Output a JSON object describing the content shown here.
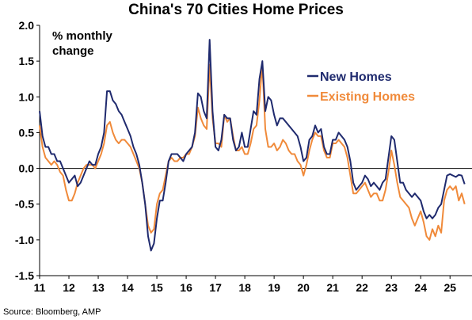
{
  "chart_data": {
    "type": "line",
    "title": "China's 70 Cities Home Prices",
    "unit_label": "% monthly\nchange",
    "source": "Source: Bloomberg, AMP",
    "x_tick_labels": [
      "11",
      "12",
      "13",
      "14",
      "15",
      "16",
      "17",
      "18",
      "19",
      "20",
      "21",
      "22",
      "23",
      "24",
      "25"
    ],
    "x_tick_years": [
      2011,
      2012,
      2013,
      2014,
      2015,
      2016,
      2017,
      2018,
      2019,
      2020,
      2021,
      2022,
      2023,
      2024,
      2025
    ],
    "xlim": [
      2011.0,
      2025.75
    ],
    "ylim": [
      -1.5,
      2.0
    ],
    "y_ticks": [
      -1.5,
      -1.0,
      -0.5,
      0.0,
      0.5,
      1.0,
      1.5,
      2.0
    ],
    "y_tick_labels": [
      "-1.5",
      "-1.0",
      "-0.5",
      "0.0",
      "0.5",
      "1.0",
      "1.5",
      "2.0"
    ],
    "grid": false,
    "legend_position": "upper-right",
    "series": [
      {
        "name": "New Homes",
        "color": "#1f2a6e",
        "points": [
          [
            2011.0,
            0.8
          ],
          [
            2011.1,
            0.45
          ],
          [
            2011.2,
            0.3
          ],
          [
            2011.3,
            0.3
          ],
          [
            2011.4,
            0.2
          ],
          [
            2011.5,
            0.2
          ],
          [
            2011.6,
            0.1
          ],
          [
            2011.7,
            0.1
          ],
          [
            2011.8,
            0.0
          ],
          [
            2011.9,
            -0.1
          ],
          [
            2012.0,
            -0.2
          ],
          [
            2012.1,
            -0.15
          ],
          [
            2012.2,
            -0.1
          ],
          [
            2012.3,
            -0.25
          ],
          [
            2012.4,
            -0.2
          ],
          [
            2012.5,
            -0.1
          ],
          [
            2012.6,
            0.0
          ],
          [
            2012.7,
            0.1
          ],
          [
            2012.8,
            0.05
          ],
          [
            2012.9,
            0.05
          ],
          [
            2013.0,
            0.2
          ],
          [
            2013.1,
            0.3
          ],
          [
            2013.2,
            0.5
          ],
          [
            2013.3,
            1.08
          ],
          [
            2013.4,
            1.08
          ],
          [
            2013.5,
            0.95
          ],
          [
            2013.6,
            0.9
          ],
          [
            2013.7,
            0.8
          ],
          [
            2013.8,
            0.75
          ],
          [
            2013.9,
            0.65
          ],
          [
            2014.0,
            0.55
          ],
          [
            2014.1,
            0.45
          ],
          [
            2014.2,
            0.3
          ],
          [
            2014.3,
            0.2
          ],
          [
            2014.4,
            0.05
          ],
          [
            2014.5,
            -0.2
          ],
          [
            2014.6,
            -0.5
          ],
          [
            2014.7,
            -0.95
          ],
          [
            2014.8,
            -1.15
          ],
          [
            2014.9,
            -1.05
          ],
          [
            2015.0,
            -0.7
          ],
          [
            2015.1,
            -0.45
          ],
          [
            2015.2,
            -0.45
          ],
          [
            2015.3,
            -0.2
          ],
          [
            2015.4,
            0.1
          ],
          [
            2015.5,
            0.2
          ],
          [
            2015.6,
            0.2
          ],
          [
            2015.7,
            0.2
          ],
          [
            2015.8,
            0.15
          ],
          [
            2015.9,
            0.1
          ],
          [
            2016.0,
            0.2
          ],
          [
            2016.1,
            0.25
          ],
          [
            2016.2,
            0.3
          ],
          [
            2016.3,
            0.5
          ],
          [
            2016.4,
            1.05
          ],
          [
            2016.5,
            1.0
          ],
          [
            2016.6,
            0.8
          ],
          [
            2016.7,
            0.7
          ],
          [
            2016.8,
            1.8
          ],
          [
            2016.9,
            0.8
          ],
          [
            2017.0,
            0.3
          ],
          [
            2017.1,
            0.25
          ],
          [
            2017.2,
            0.4
          ],
          [
            2017.3,
            0.75
          ],
          [
            2017.4,
            0.7
          ],
          [
            2017.5,
            0.7
          ],
          [
            2017.6,
            0.4
          ],
          [
            2017.7,
            0.25
          ],
          [
            2017.8,
            0.3
          ],
          [
            2017.9,
            0.5
          ],
          [
            2018.0,
            0.3
          ],
          [
            2018.1,
            0.3
          ],
          [
            2018.2,
            0.55
          ],
          [
            2018.3,
            0.8
          ],
          [
            2018.4,
            0.75
          ],
          [
            2018.5,
            1.25
          ],
          [
            2018.6,
            1.5
          ],
          [
            2018.7,
            0.8
          ],
          [
            2018.8,
            1.0
          ],
          [
            2018.9,
            0.95
          ],
          [
            2019.0,
            0.75
          ],
          [
            2019.1,
            0.6
          ],
          [
            2019.2,
            0.7
          ],
          [
            2019.3,
            0.7
          ],
          [
            2019.4,
            0.65
          ],
          [
            2019.5,
            0.6
          ],
          [
            2019.6,
            0.55
          ],
          [
            2019.7,
            0.5
          ],
          [
            2019.8,
            0.45
          ],
          [
            2019.9,
            0.3
          ],
          [
            2020.0,
            0.1
          ],
          [
            2020.1,
            0.15
          ],
          [
            2020.2,
            0.4
          ],
          [
            2020.3,
            0.45
          ],
          [
            2020.4,
            0.6
          ],
          [
            2020.5,
            0.5
          ],
          [
            2020.6,
            0.55
          ],
          [
            2020.7,
            0.3
          ],
          [
            2020.8,
            0.2
          ],
          [
            2020.9,
            0.2
          ],
          [
            2021.0,
            0.4
          ],
          [
            2021.1,
            0.4
          ],
          [
            2021.2,
            0.5
          ],
          [
            2021.3,
            0.45
          ],
          [
            2021.4,
            0.4
          ],
          [
            2021.5,
            0.3
          ],
          [
            2021.6,
            0.1
          ],
          [
            2021.7,
            -0.2
          ],
          [
            2021.8,
            -0.3
          ],
          [
            2021.9,
            -0.25
          ],
          [
            2022.0,
            -0.2
          ],
          [
            2022.1,
            -0.1
          ],
          [
            2022.2,
            -0.15
          ],
          [
            2022.3,
            -0.25
          ],
          [
            2022.4,
            -0.2
          ],
          [
            2022.5,
            -0.25
          ],
          [
            2022.6,
            -0.3
          ],
          [
            2022.7,
            -0.2
          ],
          [
            2022.8,
            -0.15
          ],
          [
            2022.9,
            0.15
          ],
          [
            2023.0,
            0.45
          ],
          [
            2023.1,
            0.4
          ],
          [
            2023.2,
            0.1
          ],
          [
            2023.3,
            -0.2
          ],
          [
            2023.4,
            -0.2
          ],
          [
            2023.5,
            -0.3
          ],
          [
            2023.6,
            -0.35
          ],
          [
            2023.7,
            -0.4
          ],
          [
            2023.8,
            -0.35
          ],
          [
            2023.9,
            -0.4
          ],
          [
            2024.0,
            -0.45
          ],
          [
            2024.1,
            -0.6
          ],
          [
            2024.2,
            -0.7
          ],
          [
            2024.3,
            -0.65
          ],
          [
            2024.4,
            -0.7
          ],
          [
            2024.5,
            -0.65
          ],
          [
            2024.6,
            -0.55
          ],
          [
            2024.7,
            -0.5
          ],
          [
            2024.8,
            -0.3
          ],
          [
            2024.9,
            -0.1
          ],
          [
            2025.0,
            -0.08
          ],
          [
            2025.1,
            -0.1
          ],
          [
            2025.2,
            -0.12
          ],
          [
            2025.3,
            -0.09
          ],
          [
            2025.4,
            -0.1
          ],
          [
            2025.5,
            -0.22
          ]
        ]
      },
      {
        "name": "Existing Homes",
        "color": "#f08a3a",
        "points": [
          [
            2011.0,
            0.6
          ],
          [
            2011.1,
            0.3
          ],
          [
            2011.2,
            0.15
          ],
          [
            2011.3,
            0.1
          ],
          [
            2011.4,
            0.05
          ],
          [
            2011.5,
            0.1
          ],
          [
            2011.6,
            0.05
          ],
          [
            2011.7,
            -0.05
          ],
          [
            2011.8,
            -0.1
          ],
          [
            2011.9,
            -0.3
          ],
          [
            2012.0,
            -0.45
          ],
          [
            2012.1,
            -0.45
          ],
          [
            2012.2,
            -0.35
          ],
          [
            2012.3,
            -0.2
          ],
          [
            2012.4,
            -0.1
          ],
          [
            2012.5,
            0.0
          ],
          [
            2012.6,
            0.05
          ],
          [
            2012.7,
            0.05
          ],
          [
            2012.8,
            0.05
          ],
          [
            2012.9,
            0.0
          ],
          [
            2013.0,
            0.1
          ],
          [
            2013.1,
            0.2
          ],
          [
            2013.2,
            0.35
          ],
          [
            2013.3,
            0.6
          ],
          [
            2013.4,
            0.65
          ],
          [
            2013.5,
            0.5
          ],
          [
            2013.6,
            0.4
          ],
          [
            2013.7,
            0.35
          ],
          [
            2013.8,
            0.4
          ],
          [
            2013.9,
            0.4
          ],
          [
            2014.0,
            0.35
          ],
          [
            2014.1,
            0.3
          ],
          [
            2014.2,
            0.2
          ],
          [
            2014.3,
            0.1
          ],
          [
            2014.4,
            0.0
          ],
          [
            2014.5,
            -0.2
          ],
          [
            2014.6,
            -0.5
          ],
          [
            2014.7,
            -0.8
          ],
          [
            2014.8,
            -0.9
          ],
          [
            2014.9,
            -0.85
          ],
          [
            2015.0,
            -0.5
          ],
          [
            2015.1,
            -0.35
          ],
          [
            2015.2,
            -0.3
          ],
          [
            2015.3,
            -0.1
          ],
          [
            2015.4,
            0.1
          ],
          [
            2015.5,
            0.15
          ],
          [
            2015.6,
            0.1
          ],
          [
            2015.7,
            0.1
          ],
          [
            2015.8,
            0.15
          ],
          [
            2015.9,
            0.15
          ],
          [
            2016.0,
            0.2
          ],
          [
            2016.1,
            0.2
          ],
          [
            2016.2,
            0.3
          ],
          [
            2016.3,
            0.45
          ],
          [
            2016.4,
            0.85
          ],
          [
            2016.5,
            0.7
          ],
          [
            2016.6,
            0.6
          ],
          [
            2016.7,
            0.55
          ],
          [
            2016.8,
            1.45
          ],
          [
            2016.9,
            0.7
          ],
          [
            2017.0,
            0.35
          ],
          [
            2017.1,
            0.35
          ],
          [
            2017.2,
            0.3
          ],
          [
            2017.3,
            0.75
          ],
          [
            2017.4,
            0.65
          ],
          [
            2017.5,
            0.7
          ],
          [
            2017.6,
            0.45
          ],
          [
            2017.7,
            0.25
          ],
          [
            2017.8,
            0.25
          ],
          [
            2017.9,
            0.3
          ],
          [
            2018.0,
            0.2
          ],
          [
            2018.1,
            0.2
          ],
          [
            2018.2,
            0.35
          ],
          [
            2018.3,
            0.55
          ],
          [
            2018.4,
            0.6
          ],
          [
            2018.5,
            0.95
          ],
          [
            2018.6,
            1.45
          ],
          [
            2018.7,
            0.55
          ],
          [
            2018.8,
            0.3
          ],
          [
            2018.9,
            0.3
          ],
          [
            2019.0,
            0.35
          ],
          [
            2019.1,
            0.25
          ],
          [
            2019.2,
            0.3
          ],
          [
            2019.3,
            0.4
          ],
          [
            2019.4,
            0.35
          ],
          [
            2019.5,
            0.25
          ],
          [
            2019.6,
            0.2
          ],
          [
            2019.7,
            0.2
          ],
          [
            2019.8,
            0.1
          ],
          [
            2019.9,
            0.05
          ],
          [
            2020.0,
            -0.1
          ],
          [
            2020.1,
            0.05
          ],
          [
            2020.2,
            0.25
          ],
          [
            2020.3,
            0.4
          ],
          [
            2020.4,
            0.5
          ],
          [
            2020.5,
            0.45
          ],
          [
            2020.6,
            0.45
          ],
          [
            2020.7,
            0.25
          ],
          [
            2020.8,
            0.15
          ],
          [
            2020.9,
            0.15
          ],
          [
            2021.0,
            0.35
          ],
          [
            2021.1,
            0.35
          ],
          [
            2021.2,
            0.4
          ],
          [
            2021.3,
            0.35
          ],
          [
            2021.4,
            0.3
          ],
          [
            2021.5,
            0.15
          ],
          [
            2021.6,
            -0.1
          ],
          [
            2021.7,
            -0.35
          ],
          [
            2021.8,
            -0.35
          ],
          [
            2021.9,
            -0.3
          ],
          [
            2022.0,
            -0.25
          ],
          [
            2022.1,
            -0.2
          ],
          [
            2022.2,
            -0.3
          ],
          [
            2022.3,
            -0.4
          ],
          [
            2022.4,
            -0.35
          ],
          [
            2022.5,
            -0.35
          ],
          [
            2022.6,
            -0.45
          ],
          [
            2022.7,
            -0.45
          ],
          [
            2022.8,
            -0.3
          ],
          [
            2022.9,
            -0.05
          ],
          [
            2023.0,
            0.25
          ],
          [
            2023.1,
            0.05
          ],
          [
            2023.2,
            -0.2
          ],
          [
            2023.3,
            -0.4
          ],
          [
            2023.4,
            -0.45
          ],
          [
            2023.5,
            -0.5
          ],
          [
            2023.6,
            -0.55
          ],
          [
            2023.7,
            -0.7
          ],
          [
            2023.8,
            -0.8
          ],
          [
            2023.9,
            -0.7
          ],
          [
            2024.0,
            -0.6
          ],
          [
            2024.1,
            -0.75
          ],
          [
            2024.2,
            -0.95
          ],
          [
            2024.3,
            -1.0
          ],
          [
            2024.4,
            -0.85
          ],
          [
            2024.5,
            -0.95
          ],
          [
            2024.6,
            -0.8
          ],
          [
            2024.7,
            -0.9
          ],
          [
            2024.8,
            -0.45
          ],
          [
            2024.9,
            -0.3
          ],
          [
            2025.0,
            -0.25
          ],
          [
            2025.1,
            -0.3
          ],
          [
            2025.2,
            -0.25
          ],
          [
            2025.3,
            -0.45
          ],
          [
            2025.4,
            -0.35
          ],
          [
            2025.5,
            -0.5
          ]
        ]
      }
    ]
  }
}
